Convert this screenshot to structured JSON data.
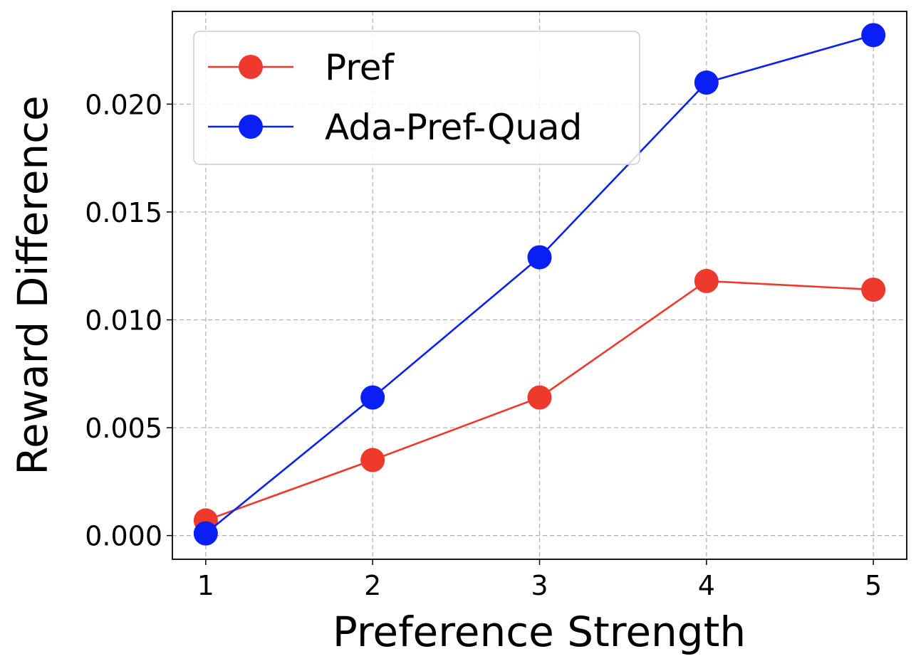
{
  "chart_data": {
    "type": "line",
    "xlabel": "Preference Strength",
    "ylabel": "Reward Difference",
    "x": [
      1,
      2,
      3,
      4,
      5
    ],
    "xlim": [
      0.8,
      5.2
    ],
    "ylim": [
      -0.0011,
      0.0243
    ],
    "xticks": [
      "1",
      "2",
      "3",
      "4",
      "5"
    ],
    "yticks": [
      "0.000",
      "0.005",
      "0.010",
      "0.015",
      "0.020"
    ],
    "grid": true,
    "legend_position": "top-left",
    "series": [
      {
        "name": "Pref",
        "color": "#ee3a2c",
        "values": [
          0.0007,
          0.0035,
          0.0064,
          0.0118,
          0.0114
        ]
      },
      {
        "name": "Ada-Pref-Quad",
        "color": "#0a1ff5",
        "values": [
          0.0001,
          0.0064,
          0.0129,
          0.021,
          0.0232
        ]
      }
    ]
  }
}
